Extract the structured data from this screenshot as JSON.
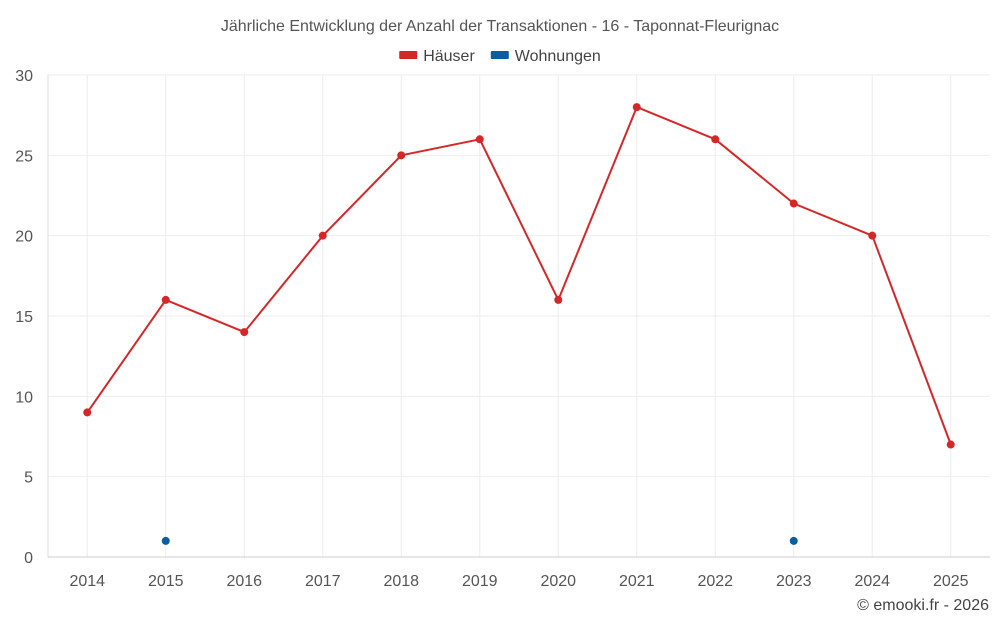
{
  "chart_data": {
    "type": "line",
    "title": "Jährliche Entwicklung der Anzahl der Transaktionen - 16 - Taponnat-Fleurignac",
    "xlabel": "",
    "ylabel": "",
    "x": [
      "2014",
      "2015",
      "2016",
      "2017",
      "2018",
      "2019",
      "2020",
      "2021",
      "2022",
      "2023",
      "2024",
      "2025"
    ],
    "ylim": [
      0,
      30
    ],
    "yticks": [
      0,
      5,
      10,
      15,
      20,
      25,
      30
    ],
    "grid": true,
    "legend_position": "top-center",
    "series": [
      {
        "name": "Häuser",
        "color": "#d62728",
        "mode": "line+markers",
        "values": [
          9,
          16,
          14,
          20,
          25,
          26,
          16,
          28,
          26,
          22,
          20,
          7
        ]
      },
      {
        "name": "Wohnungen",
        "color": "#0a5d9e",
        "mode": "markers",
        "values": [
          null,
          1,
          null,
          null,
          null,
          null,
          null,
          null,
          null,
          1,
          null,
          null
        ]
      }
    ],
    "credit": "© emooki.fr - 2026"
  }
}
